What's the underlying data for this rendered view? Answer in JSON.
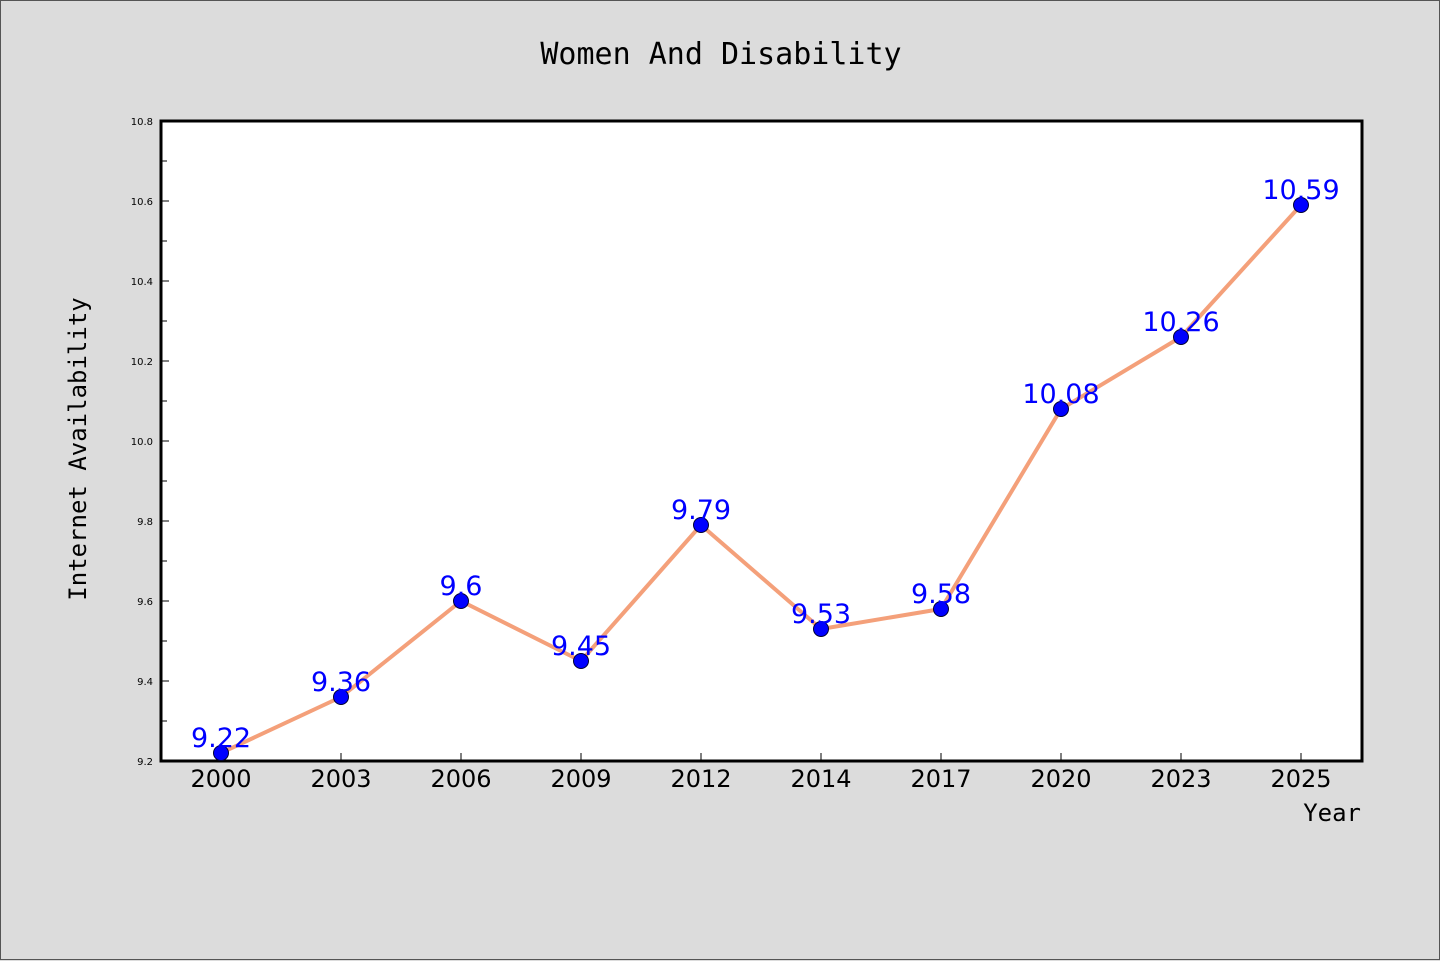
{
  "chart_data": {
    "type": "line",
    "title": "Women And Disability",
    "xlabel": "Year",
    "ylabel": "Internet Availability",
    "categories": [
      "2000",
      "2003",
      "2006",
      "2009",
      "2012",
      "2014",
      "2017",
      "2020",
      "2023",
      "2025"
    ],
    "series": [
      {
        "values": [
          9.22,
          9.36,
          9.6,
          9.45,
          9.79,
          9.53,
          9.58,
          10.08,
          10.26,
          10.59
        ]
      }
    ],
    "data_labels": [
      "9.22",
      "9.36",
      "9.6",
      "9.45",
      "9.79",
      "9.53",
      "9.58",
      "10.08",
      "10.26",
      "10.59"
    ],
    "ylim": [
      9.2,
      10.8
    ],
    "yticks": [
      "9.2",
      "9.4",
      "9.6",
      "9.8",
      "10.0",
      "10.2",
      "10.4",
      "10.6",
      "10.8"
    ],
    "yticks_minor_step": 0.1,
    "grid": false,
    "colors": {
      "line": "#f4a07a",
      "marker": "#0000ff",
      "marker_edge": "#000033",
      "label": "#0000ff",
      "plot_bg": "#ffffff",
      "page_bg": "#dcdcdc"
    }
  }
}
